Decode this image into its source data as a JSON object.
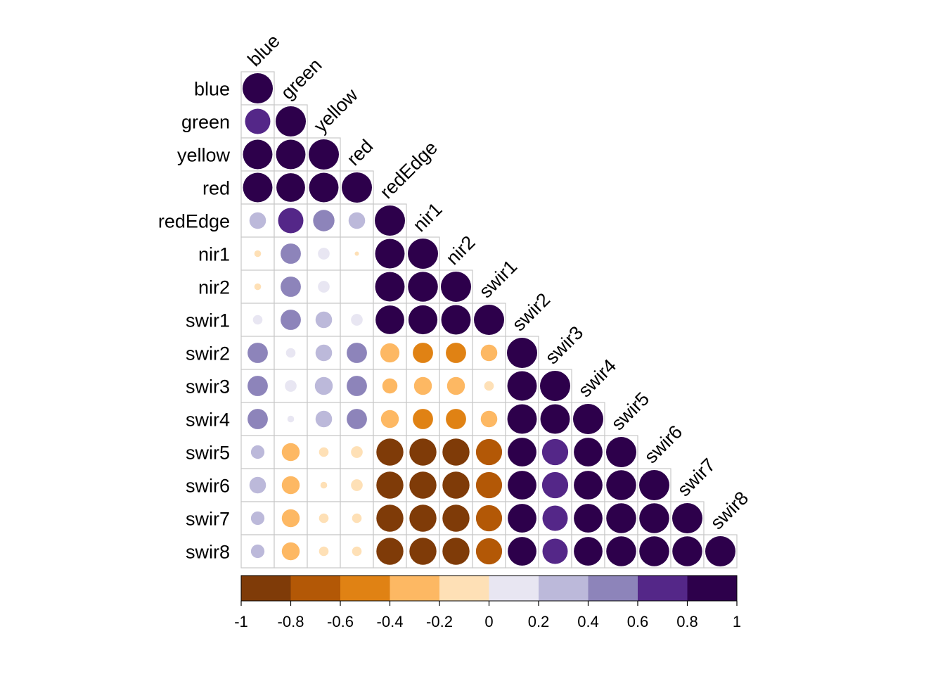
{
  "chart_data": {
    "type": "heatmap",
    "subtype": "correlation-lower-triangle-circles",
    "variables": [
      "blue",
      "green",
      "yellow",
      "red",
      "redEdge",
      "nir1",
      "nir2",
      "swir1",
      "swir2",
      "swir3",
      "swir4",
      "swir5",
      "swir6",
      "swir7",
      "swir8"
    ],
    "matrix": [
      [
        1.0
      ],
      [
        0.7,
        1.0
      ],
      [
        0.95,
        0.95,
        1.0
      ],
      [
        0.95,
        0.9,
        0.95,
        1.0
      ],
      [
        0.3,
        0.7,
        0.5,
        0.3,
        1.0
      ],
      [
        -0.05,
        0.45,
        0.15,
        -0.02,
        0.95,
        1.0
      ],
      [
        -0.05,
        0.45,
        0.15,
        0.0,
        0.95,
        0.98,
        1.0
      ],
      [
        0.1,
        0.45,
        0.3,
        0.15,
        0.9,
        0.92,
        0.95,
        1.0
      ],
      [
        0.45,
        0.1,
        0.3,
        0.45,
        -0.4,
        -0.45,
        -0.45,
        -0.3,
        1.0
      ],
      [
        0.45,
        0.15,
        0.35,
        0.45,
        -0.25,
        -0.35,
        -0.35,
        -0.1,
        0.95,
        1.0
      ],
      [
        0.45,
        0.05,
        0.3,
        0.45,
        -0.35,
        -0.45,
        -0.45,
        -0.3,
        0.95,
        0.95,
        1.0
      ],
      [
        0.2,
        -0.35,
        -0.1,
        -0.15,
        -0.8,
        -0.8,
        -0.8,
        -0.75,
        0.9,
        0.75,
        0.9,
        1.0
      ],
      [
        0.3,
        -0.35,
        -0.05,
        -0.15,
        -0.8,
        -0.8,
        -0.8,
        -0.75,
        0.9,
        0.75,
        0.9,
        0.98,
        1.0
      ],
      [
        0.2,
        -0.35,
        -0.1,
        -0.1,
        -0.8,
        -0.8,
        -0.8,
        -0.75,
        0.9,
        0.7,
        0.9,
        0.98,
        0.98,
        1.0
      ],
      [
        0.2,
        -0.35,
        -0.1,
        -0.1,
        -0.8,
        -0.8,
        -0.8,
        -0.75,
        0.9,
        0.7,
        0.9,
        0.98,
        0.98,
        0.98,
        1.0
      ]
    ],
    "colorbar": {
      "range": [
        -1,
        1
      ],
      "ticks": [
        "-1",
        "-0.8",
        "-0.6",
        "-0.4",
        "-0.2",
        "0",
        "0.2",
        "0.4",
        "0.6",
        "0.8",
        "1"
      ],
      "colors": [
        "#7f3b08",
        "#b35806",
        "#e08214",
        "#fdb863",
        "#fee0b6",
        "#e8e6f2",
        "#bcb9da",
        "#8d84ba",
        "#542788",
        "#2d004b"
      ]
    },
    "grid": true,
    "legend": "bottom"
  }
}
